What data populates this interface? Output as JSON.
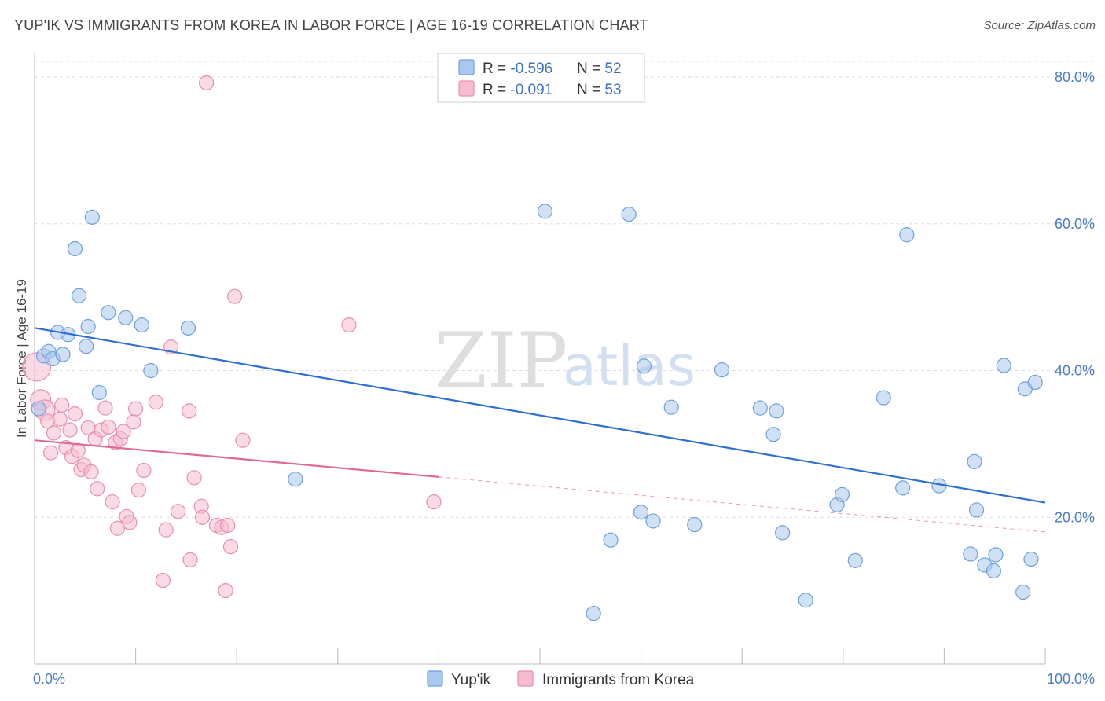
{
  "title": "YUP'IK VS IMMIGRANTS FROM KOREA IN LABOR FORCE | AGE 16-19 CORRELATION CHART",
  "source": "Source: ZipAtlas.com",
  "watermark": {
    "zip": "ZIP",
    "atlas": "atlas"
  },
  "colors": {
    "blue_fill": "#aac8ee",
    "blue_stroke": "#6f9fdc",
    "blue_line": "#2e6fd0",
    "pink_fill": "#f5bcd0",
    "pink_stroke": "#e88fae",
    "pink_line": "#e06a93",
    "tick_text": "#4a7cc7",
    "grid": "#dddddd"
  },
  "legend_top": {
    "rows": [
      {
        "r_label": "R = ",
        "r_value": "-0.596",
        "n_label": "N = ",
        "n_value": "52"
      },
      {
        "r_label": "R = ",
        "r_value": "-0.091",
        "n_label": "N = ",
        "n_value": "53"
      }
    ]
  },
  "legend_bottom": [
    "Yup'ik",
    "Immigrants from Korea"
  ],
  "chart_data": {
    "type": "scatter",
    "title": "YUP'IK VS IMMIGRANTS FROM KOREA IN LABOR FORCE | AGE 16-19 CORRELATION CHART",
    "xlabel": "",
    "ylabel": "In Labor Force | Age 16-19",
    "xlim": [
      0,
      100
    ],
    "ylim": [
      0,
      83
    ],
    "x_ticks": [
      "0.0%",
      "100.0%"
    ],
    "y_ticks": [
      {
        "value": 20,
        "label": "20.0%"
      },
      {
        "value": 40,
        "label": "40.0%"
      },
      {
        "value": 60,
        "label": "60.0%"
      },
      {
        "value": 80,
        "label": "80.0%"
      }
    ],
    "grid": "horizontal dashed",
    "legend_placement": "top-center",
    "series": [
      {
        "name": "Yup'ik",
        "r": -0.596,
        "n": 52,
        "trend": {
          "x0": 0,
          "y0": 45.8,
          "x1": 100,
          "y1": 22.0
        },
        "points": [
          [
            0.4,
            34.8
          ],
          [
            0.9,
            42.0
          ],
          [
            1.4,
            42.6
          ],
          [
            1.8,
            41.6
          ],
          [
            2.3,
            45.2
          ],
          [
            2.8,
            42.2
          ],
          [
            3.3,
            44.9
          ],
          [
            4.0,
            56.6
          ],
          [
            4.4,
            50.2
          ],
          [
            5.1,
            43.3
          ],
          [
            5.3,
            46.0
          ],
          [
            5.7,
            60.9
          ],
          [
            6.4,
            37.0
          ],
          [
            7.3,
            47.9
          ],
          [
            9.0,
            47.2
          ],
          [
            10.6,
            46.2
          ],
          [
            11.5,
            40.0
          ],
          [
            15.2,
            45.8
          ],
          [
            25.8,
            25.2
          ],
          [
            50.5,
            61.7
          ],
          [
            55.3,
            6.9
          ],
          [
            57.0,
            16.9
          ],
          [
            58.8,
            61.3
          ],
          [
            60.0,
            20.7
          ],
          [
            60.3,
            40.6
          ],
          [
            61.2,
            19.5
          ],
          [
            63.0,
            35.0
          ],
          [
            65.3,
            19.0
          ],
          [
            68.0,
            40.1
          ],
          [
            71.8,
            34.9
          ],
          [
            73.1,
            31.3
          ],
          [
            73.4,
            34.5
          ],
          [
            74.0,
            17.9
          ],
          [
            76.3,
            8.7
          ],
          [
            79.4,
            21.7
          ],
          [
            79.9,
            23.1
          ],
          [
            81.2,
            14.1
          ],
          [
            84.0,
            36.3
          ],
          [
            85.9,
            24.0
          ],
          [
            86.3,
            58.5
          ],
          [
            89.5,
            24.3
          ],
          [
            92.6,
            15.0
          ],
          [
            93.0,
            27.6
          ],
          [
            93.2,
            21.0
          ],
          [
            94.0,
            13.5
          ],
          [
            94.9,
            12.7
          ],
          [
            95.1,
            14.9
          ],
          [
            95.9,
            40.7
          ],
          [
            97.8,
            9.8
          ],
          [
            98.0,
            37.5
          ],
          [
            98.6,
            14.3
          ],
          [
            99.0,
            38.4
          ]
        ]
      },
      {
        "name": "Immigrants from Korea",
        "r": -0.091,
        "n": 53,
        "trend": {
          "x0": 0,
          "y0": 30.5,
          "x1": 40,
          "y1": 25.5,
          "dash_to_x": 100,
          "dash_to_y": 18.0
        },
        "points": [
          [
            0.2,
            40.5
          ],
          [
            0.6,
            36.0
          ],
          [
            1.0,
            34.6
          ],
          [
            1.3,
            33.1
          ],
          [
            1.6,
            28.8
          ],
          [
            1.9,
            31.5
          ],
          [
            2.5,
            33.4
          ],
          [
            2.7,
            35.3
          ],
          [
            3.1,
            29.5
          ],
          [
            3.5,
            31.9
          ],
          [
            3.7,
            28.3
          ],
          [
            4.0,
            34.1
          ],
          [
            4.3,
            29.1
          ],
          [
            4.6,
            26.5
          ],
          [
            4.9,
            27.1
          ],
          [
            5.3,
            32.2
          ],
          [
            5.6,
            26.2
          ],
          [
            6.0,
            30.7
          ],
          [
            6.2,
            23.9
          ],
          [
            6.6,
            31.9
          ],
          [
            7.0,
            34.9
          ],
          [
            7.3,
            32.3
          ],
          [
            7.7,
            22.1
          ],
          [
            8.0,
            30.2
          ],
          [
            8.2,
            18.5
          ],
          [
            8.5,
            30.7
          ],
          [
            8.8,
            31.7
          ],
          [
            9.1,
            20.1
          ],
          [
            9.4,
            19.3
          ],
          [
            9.8,
            33.0
          ],
          [
            10.0,
            34.8
          ],
          [
            10.3,
            23.7
          ],
          [
            10.8,
            26.4
          ],
          [
            12.0,
            35.7
          ],
          [
            12.7,
            11.4
          ],
          [
            13.0,
            18.3
          ],
          [
            13.5,
            43.2
          ],
          [
            14.2,
            20.8
          ],
          [
            15.3,
            34.5
          ],
          [
            15.4,
            14.2
          ],
          [
            15.8,
            25.4
          ],
          [
            16.5,
            21.5
          ],
          [
            16.6,
            20.0
          ],
          [
            17.0,
            79.2
          ],
          [
            18.0,
            18.9
          ],
          [
            18.5,
            18.6
          ],
          [
            18.9,
            10.0
          ],
          [
            19.1,
            18.9
          ],
          [
            19.4,
            16.0
          ],
          [
            19.8,
            50.1
          ],
          [
            20.6,
            30.5
          ],
          [
            31.1,
            46.2
          ],
          [
            39.5,
            22.1
          ]
        ]
      }
    ]
  }
}
